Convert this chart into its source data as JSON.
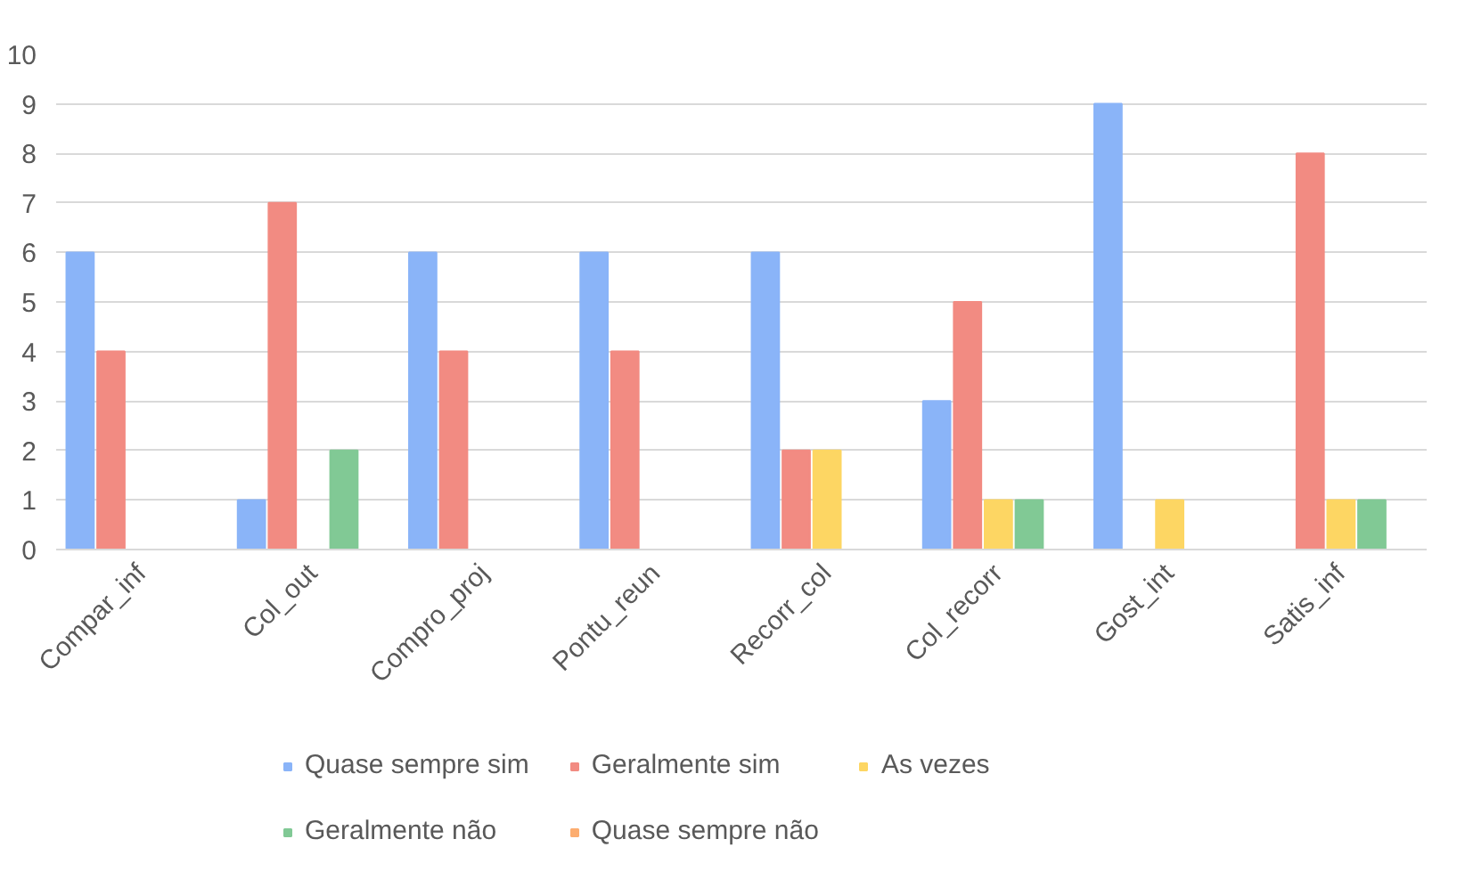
{
  "chart_data": {
    "type": "bar",
    "categories": [
      "Compar_inf",
      "Col_out",
      "Compro_proj",
      "Pontu_reun",
      "Recorr_col",
      "Col_recorr",
      "Gost_int",
      "Satis_inf"
    ],
    "series": [
      {
        "name": "Quase sempre sim",
        "color": "#8ab4f8",
        "values": [
          6,
          1,
          6,
          6,
          6,
          3,
          9,
          0
        ]
      },
      {
        "name": "Geralmente sim",
        "color": "#f28b82",
        "values": [
          4,
          7,
          4,
          4,
          2,
          5,
          0,
          8
        ]
      },
      {
        "name": "As vezes",
        "color": "#fdd663",
        "values": [
          0,
          0,
          0,
          0,
          2,
          1,
          1,
          1
        ]
      },
      {
        "name": "Geralmente não",
        "color": "#81c995",
        "values": [
          0,
          2,
          0,
          0,
          0,
          1,
          0,
          1
        ]
      },
      {
        "name": "Quase sempre não",
        "color": "#fcad70",
        "values": [
          0,
          0,
          0,
          0,
          0,
          0,
          0,
          0
        ]
      }
    ],
    "ylim": [
      0,
      10
    ],
    "yticks": [
      0,
      1,
      2,
      3,
      4,
      5,
      6,
      7,
      8,
      9,
      10
    ],
    "grid": "y",
    "legend": "bottom"
  }
}
